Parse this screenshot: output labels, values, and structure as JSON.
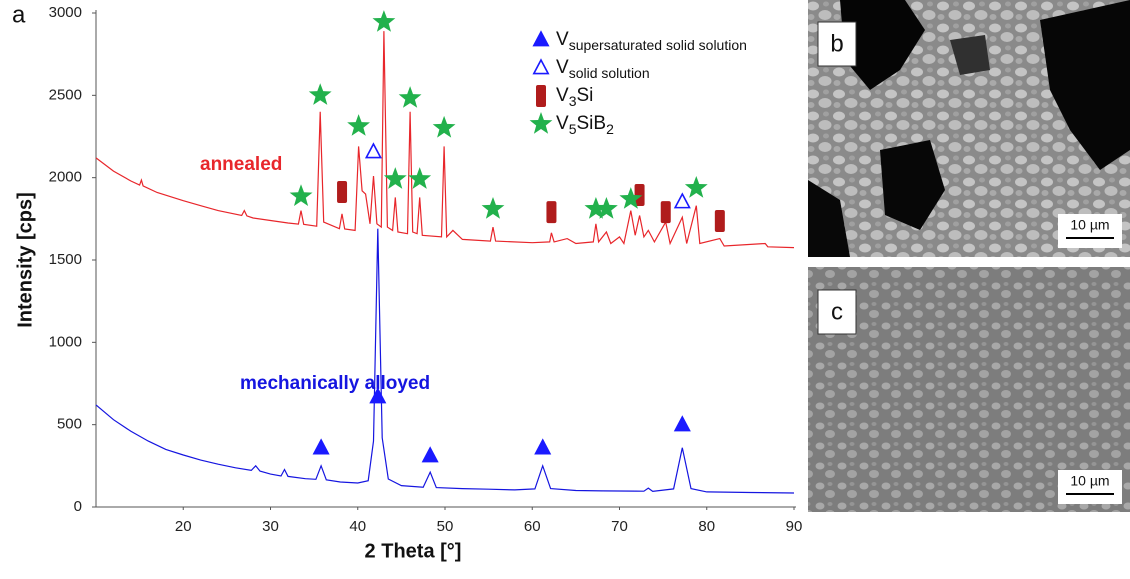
{
  "chart_data": {
    "type": "line",
    "panel_label": "a",
    "x_label": "2 Theta [°]",
    "y_label": "Intensity [cps]",
    "xlim": [
      10,
      90
    ],
    "ylim": [
      0,
      3000
    ],
    "xticks": [
      20,
      30,
      40,
      50,
      60,
      70,
      80,
      90
    ],
    "yticks": [
      0,
      500,
      1000,
      1500,
      2000,
      2500,
      3000
    ],
    "series": [
      {
        "name": "annealed",
        "color": "#e8262b",
        "x": [
          10,
          12,
          14,
          15,
          15.2,
          15.4,
          17,
          20,
          22,
          24,
          26.7,
          27,
          27.3,
          28,
          30,
          32,
          33.2,
          33.5,
          33.8,
          35.3,
          35.7,
          36.1,
          37.9,
          38.2,
          38.5,
          39.7,
          40.1,
          40.5,
          40.9,
          41.4,
          41.8,
          42.2,
          42.7,
          43,
          43.4,
          44,
          44.3,
          44.6,
          45.7,
          46,
          46.3,
          46.8,
          47.1,
          47.4,
          49.6,
          49.9,
          50.2,
          50.9,
          52,
          55.2,
          55.5,
          55.8,
          60,
          62,
          62.2,
          62.5,
          64,
          65,
          67,
          67.3,
          67.6,
          68.5,
          69,
          70,
          70.5,
          71.3,
          71.8,
          72.3,
          72.8,
          73.3,
          74,
          75.3,
          75.8,
          77.2,
          77.7,
          78.8,
          79.2,
          81.5,
          82,
          86.7,
          87,
          90
        ],
        "values": [
          2120,
          2040,
          1980,
          1955,
          1985,
          1950,
          1910,
          1860,
          1830,
          1800,
          1770,
          1800,
          1768,
          1755,
          1740,
          1725,
          1718,
          1800,
          1716,
          1705,
          2400,
          1730,
          1690,
          1780,
          1688,
          1680,
          2190,
          1920,
          1900,
          1720,
          2010,
          1720,
          1700,
          2890,
          1700,
          1680,
          1880,
          1670,
          1660,
          2400,
          1670,
          1660,
          1880,
          1650,
          1640,
          2190,
          1640,
          1680,
          1625,
          1615,
          1700,
          1615,
          1605,
          1610,
          1665,
          1610,
          1630,
          1600,
          1610,
          1720,
          1610,
          1670,
          1600,
          1640,
          1600,
          1800,
          1650,
          1770,
          1640,
          1680,
          1610,
          1730,
          1600,
          1760,
          1600,
          1830,
          1600,
          1630,
          1585,
          1600,
          1580,
          1575
        ]
      },
      {
        "name": "mechanically alloyed",
        "color": "#1515e0",
        "x": [
          10,
          12,
          14,
          16,
          18,
          20,
          22,
          24,
          26,
          27.8,
          28.3,
          28.8,
          30,
          31.2,
          31.6,
          32,
          34,
          35.2,
          35.8,
          36.4,
          38,
          40,
          41.2,
          41.8,
          42.3,
          42.8,
          43.5,
          45,
          47.5,
          48.3,
          49,
          52,
          55,
          58,
          60.3,
          61.2,
          62.1,
          65,
          68,
          72.8,
          73.3,
          73.8,
          76.2,
          77.2,
          78.2,
          80,
          85,
          90
        ],
        "values": [
          620,
          530,
          460,
          400,
          350,
          316,
          285,
          260,
          238,
          222,
          250,
          218,
          200,
          188,
          228,
          186,
          172,
          168,
          250,
          165,
          152,
          146,
          160,
          400,
          1690,
          420,
          170,
          130,
          120,
          212,
          118,
          112,
          108,
          104,
          110,
          250,
          112,
          100,
          98,
          96,
          115,
          95,
          110,
          360,
          112,
          92,
          88,
          85
        ]
      }
    ],
    "markers": [
      {
        "shape": "triangle",
        "filled": true,
        "color": "#1a1aff",
        "legend": [
          {
            "text": "V"
          },
          {
            "text": "supersaturated solid solution",
            "sub": true
          }
        ],
        "x": [
          35.8,
          42.3,
          48.3,
          61.2,
          77.2
        ],
        "values": [
          358,
          668,
          310,
          358,
          498
        ]
      },
      {
        "shape": "triangle",
        "filled": false,
        "color": "#1a1aff",
        "legend": [
          {
            "text": "V"
          },
          {
            "text": "solid solution",
            "sub": true
          }
        ],
        "x": [
          41.8,
          77.2
        ],
        "values": [
          2156,
          1852
        ]
      },
      {
        "shape": "rect",
        "filled": true,
        "color": "#b01c1c",
        "legend": [
          {
            "text": "V"
          },
          {
            "text": "3",
            "sub": true
          },
          {
            "text": "Si"
          }
        ],
        "x": [
          38.2,
          62.2,
          72.3,
          75.3,
          81.5
        ],
        "values": [
          1913,
          1791,
          1895,
          1791,
          1737
        ]
      },
      {
        "shape": "star",
        "filled": true,
        "color": "#22b14c",
        "legend": [
          {
            "text": "V"
          },
          {
            "text": "5",
            "sub": true
          },
          {
            "text": "SiB"
          },
          {
            "text": "2",
            "sub": true
          }
        ],
        "x": [
          33.5,
          35.7,
          40.1,
          43.0,
          44.3,
          46.0,
          47.1,
          49.9,
          55.5,
          67.3,
          68.5,
          71.3,
          78.8
        ],
        "values": [
          1887,
          2501,
          2313,
          2945,
          1991,
          2483,
          1991,
          2302,
          1810,
          1810,
          1810,
          1870,
          1937
        ]
      }
    ]
  },
  "micrographs": [
    {
      "label": "b",
      "scale_bar": "10 µm"
    },
    {
      "label": "c",
      "scale_bar": "10 µm"
    }
  ]
}
